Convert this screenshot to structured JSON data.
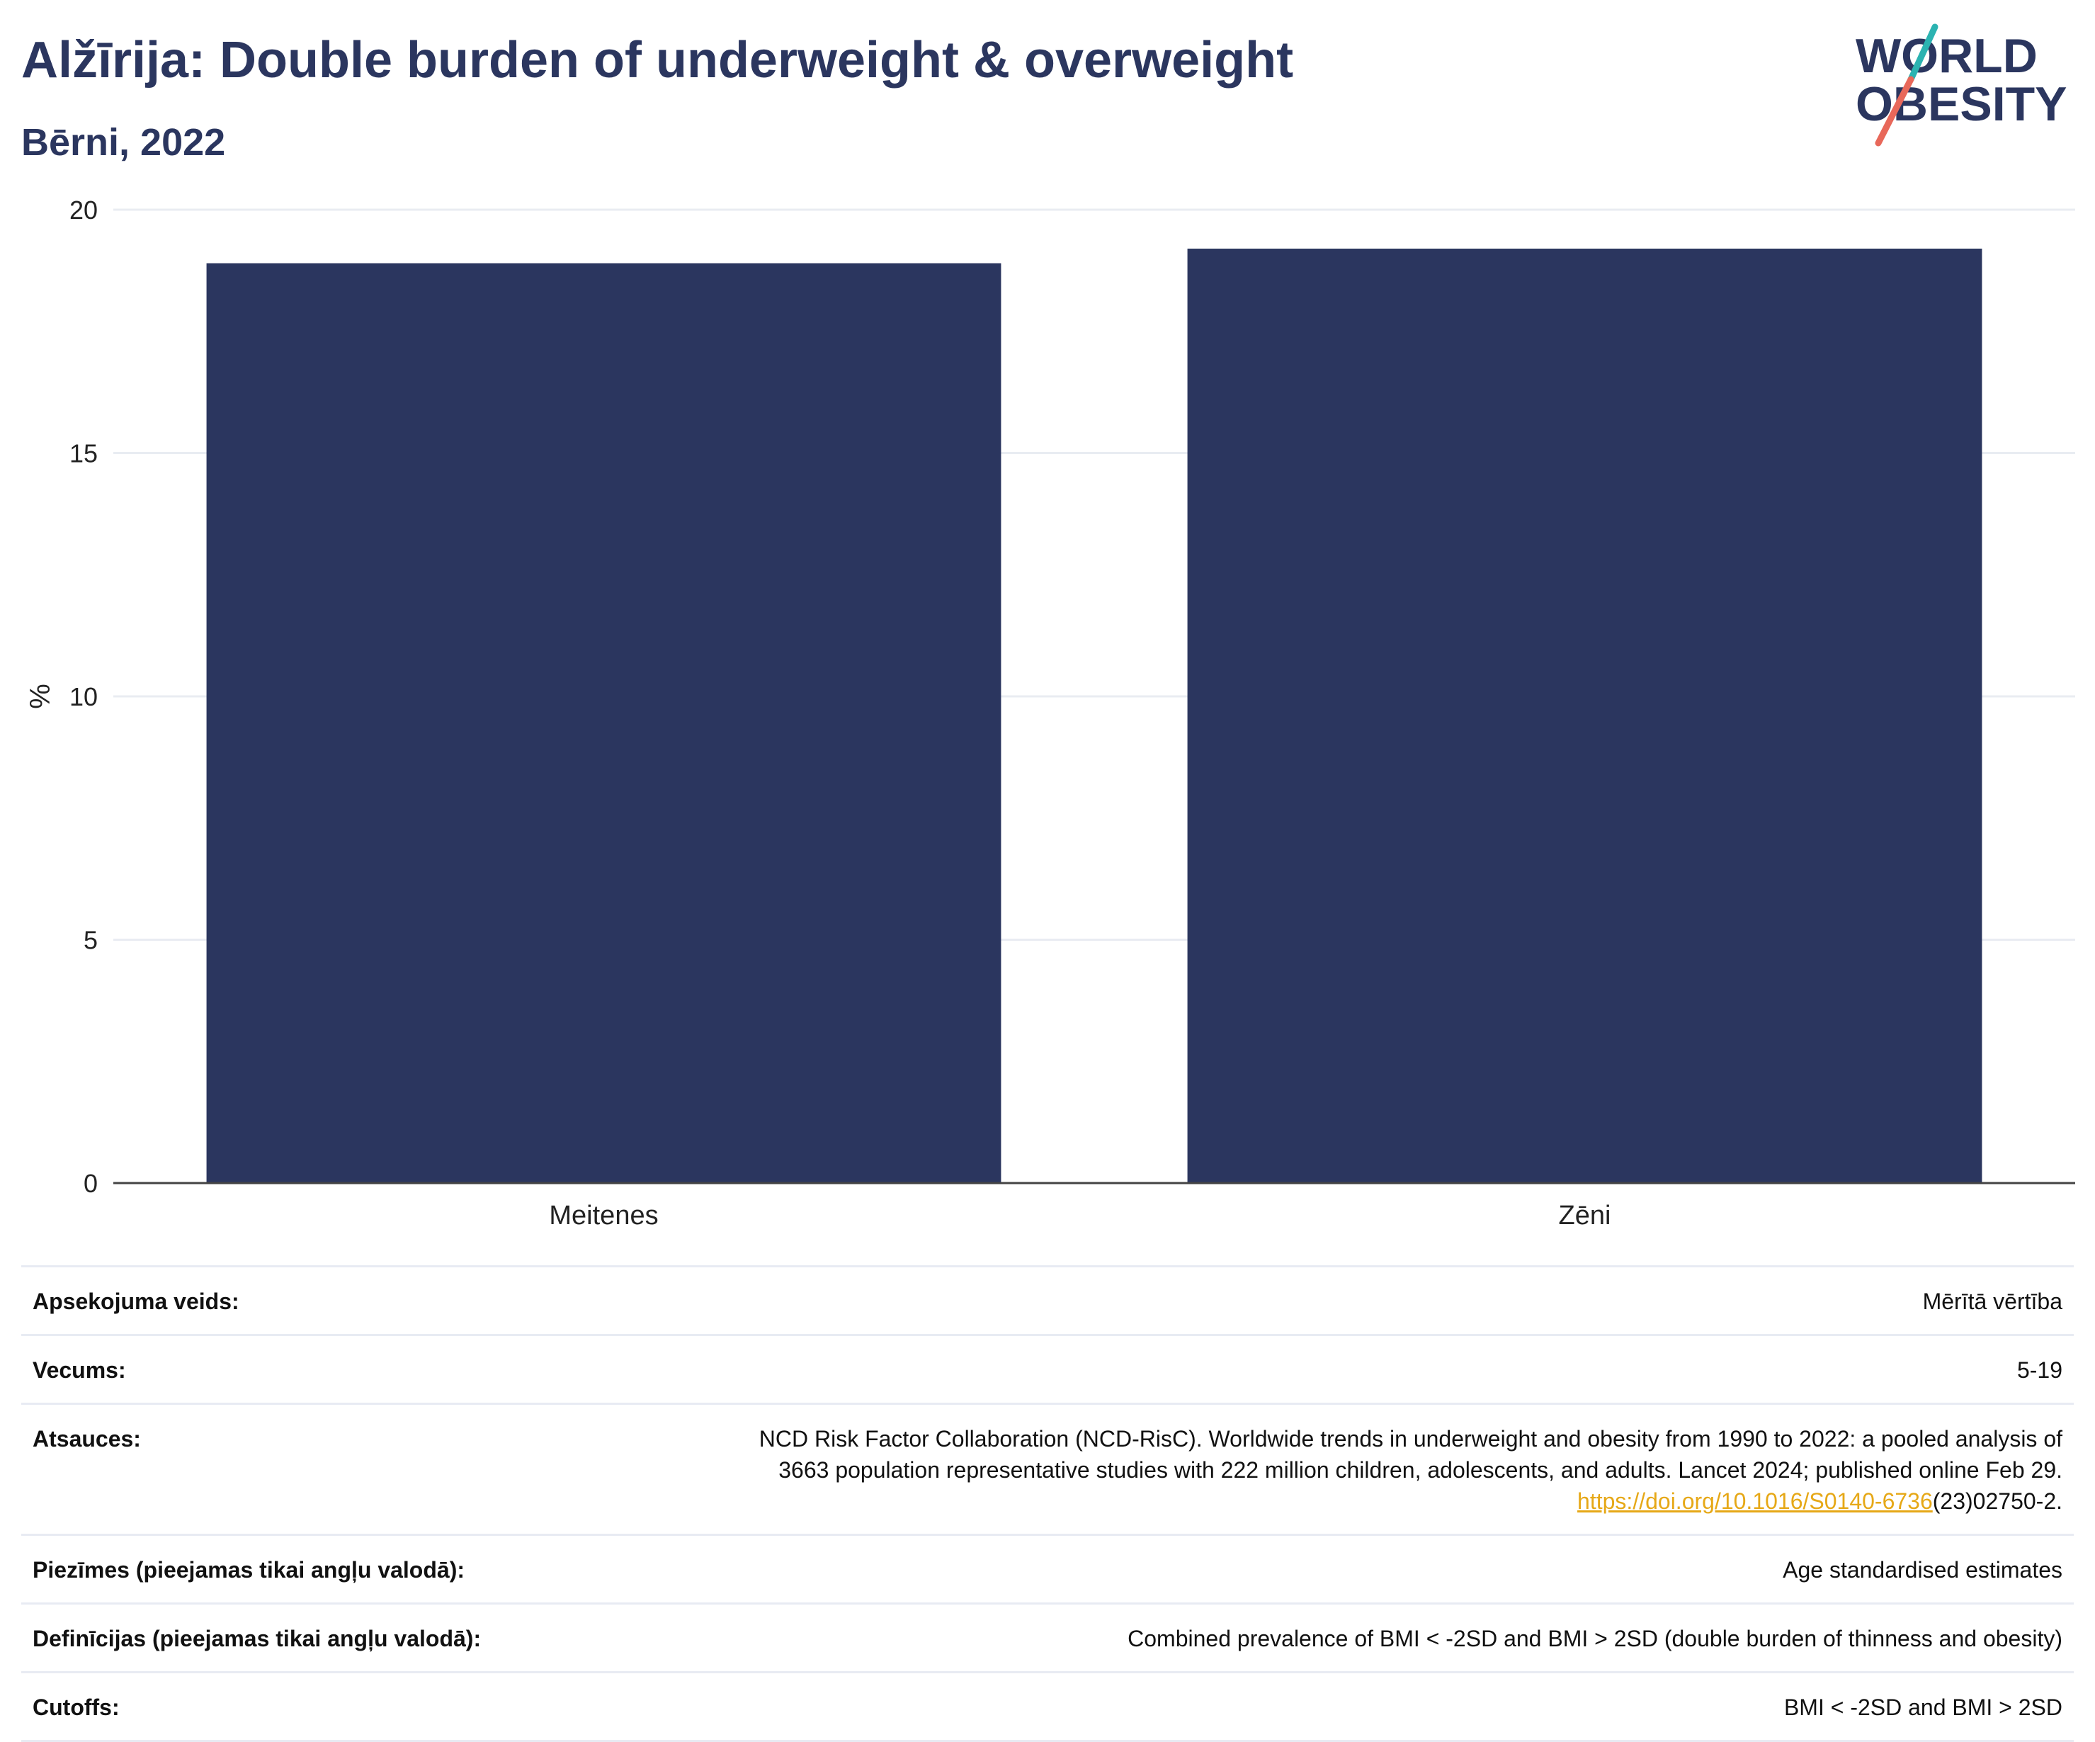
{
  "header": {
    "title": "Alžīrija: Double burden of underweight & overweight",
    "subtitle": "Bērni, 2022"
  },
  "logo": {
    "line1": "WORLD",
    "line2": "OBESITY",
    "colors": {
      "text": "#2b365f",
      "slash_top": "#2bb3b1",
      "slash_bottom": "#e8685a"
    }
  },
  "chart_data": {
    "type": "bar",
    "categories": [
      "Meitenes",
      "Zēni"
    ],
    "values": [
      18.9,
      19.2
    ],
    "ylabel": "%",
    "xlabel": "",
    "ylim": [
      0,
      20
    ],
    "yticks": [
      0,
      5,
      10,
      15,
      20
    ],
    "grid": true,
    "bar_color": "#2b365f"
  },
  "meta": {
    "survey_type": {
      "label": "Apsekojuma veids:",
      "value": "Mērītā vērtība"
    },
    "age": {
      "label": "Vecums:",
      "value": "5-19"
    },
    "references": {
      "label": "Atsauces:",
      "line1": "NCD Risk Factor Collaboration (NCD-RisC). Worldwide trends in underweight and obesity from 1990 to 2022: a pooled analysis of",
      "line2": "3663 population representative studies with 222 million children, adolescents, and adults. Lancet 2024; published online Feb 29.",
      "link_text": "https://doi.org/10.1016/S0140-6736",
      "link_suffix": "(23)02750-2."
    },
    "notes": {
      "label": "Piezīmes (pieejamas tikai angļu valodā):",
      "value": "Age standardised estimates"
    },
    "definitions": {
      "label": "Definīcijas (pieejamas tikai angļu valodā):",
      "value": "Combined prevalence of BMI < -2SD and BMI > 2SD (double burden of thinness and obesity)"
    },
    "cutoffs": {
      "label": "Cutoffs:",
      "value": "BMI < -2SD and BMI > 2SD"
    }
  }
}
